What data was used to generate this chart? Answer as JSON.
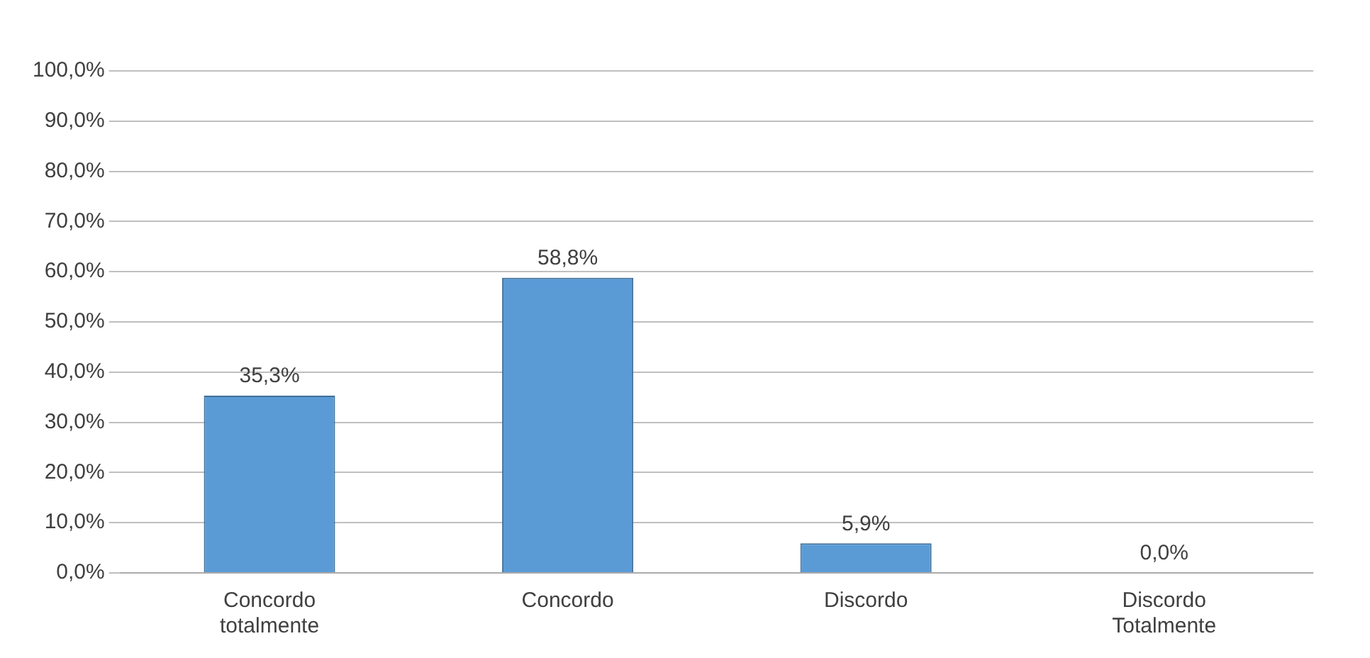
{
  "chart_data": {
    "type": "bar",
    "categories": [
      "Concordo totalmente",
      "Concordo",
      "Discordo",
      "Discordo Totalmente"
    ],
    "values": [
      35.3,
      58.8,
      5.9,
      0.0
    ],
    "value_labels": [
      "35,3%",
      "58,8%",
      "5,9%",
      "0,0%"
    ],
    "color": "#5b9bd5",
    "ylim": [
      0,
      100
    ],
    "yticks": [
      {
        "value": 0,
        "label": "0,0%"
      },
      {
        "value": 10,
        "label": "10,0%"
      },
      {
        "value": 20,
        "label": "20,0%"
      },
      {
        "value": 30,
        "label": "30,0%"
      },
      {
        "value": 40,
        "label": "40,0%"
      },
      {
        "value": 50,
        "label": "50,0%"
      },
      {
        "value": 60,
        "label": "60,0%"
      },
      {
        "value": 70,
        "label": "70,0%"
      },
      {
        "value": 80,
        "label": "80,0%"
      },
      {
        "value": 90,
        "label": "90,0%"
      },
      {
        "value": 100,
        "label": "100,0%"
      }
    ],
    "grid": "y",
    "legend": false
  }
}
